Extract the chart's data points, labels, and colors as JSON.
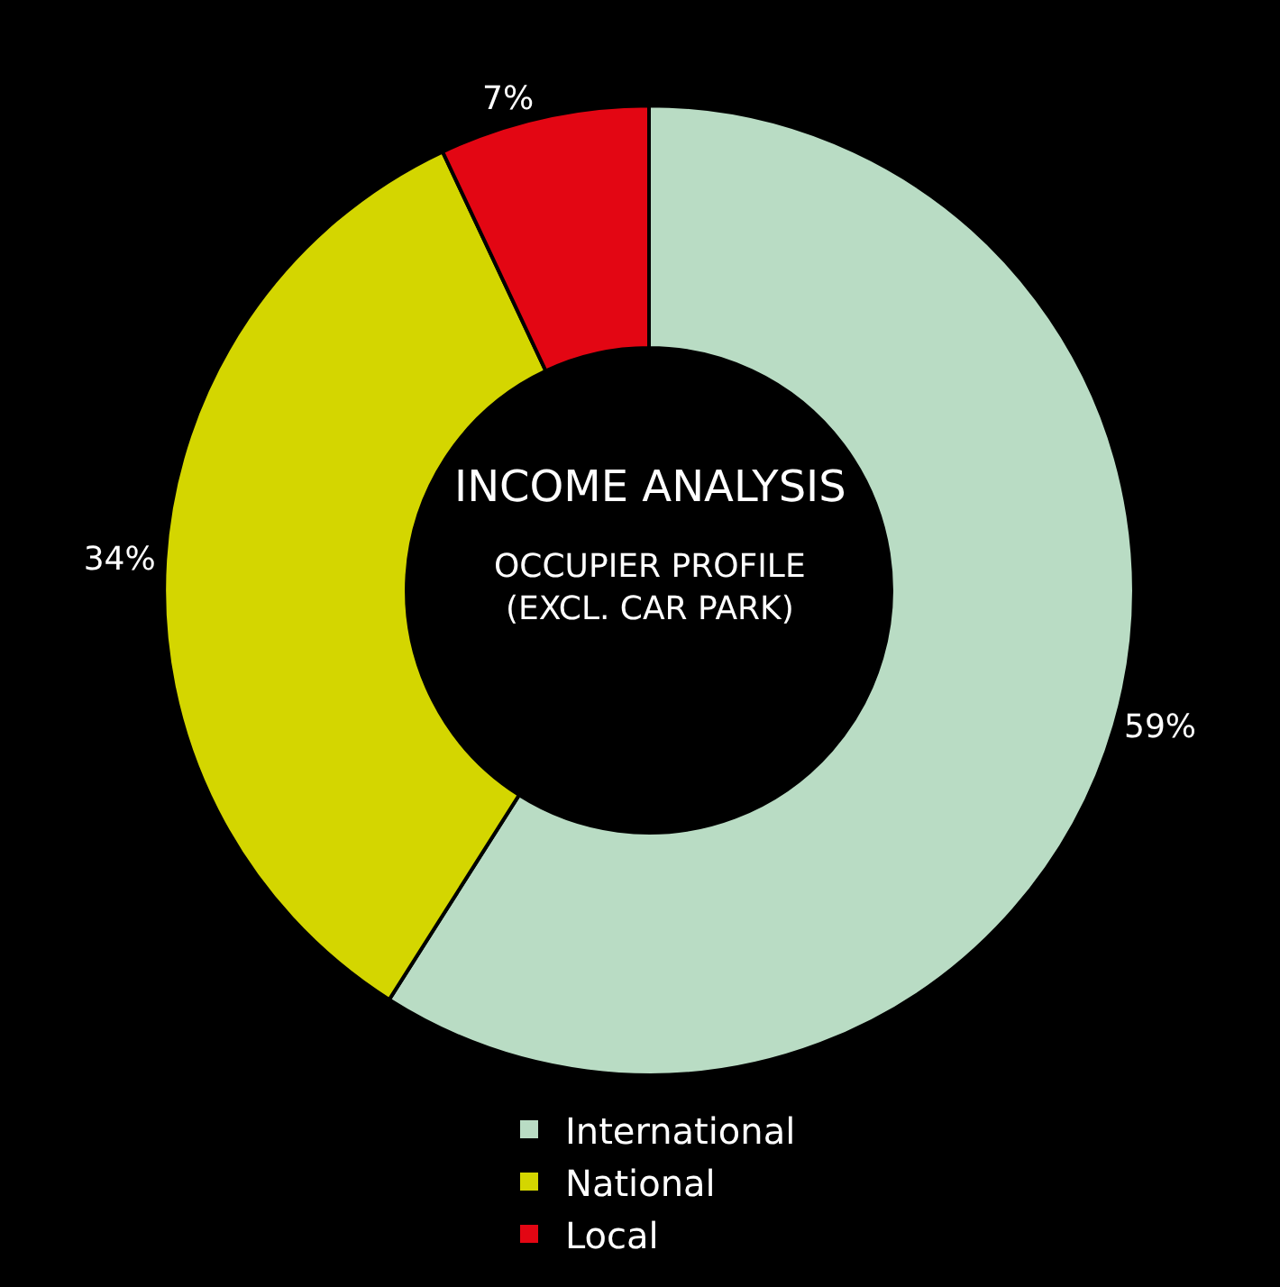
{
  "chart_data": {
    "type": "donut",
    "title": "INCOME ANALYSIS",
    "subtitle": "OCCUPIER PROFILE (EXCL. CAR PARK)",
    "categories": [
      "International",
      "National",
      "Local"
    ],
    "values": [
      59,
      34,
      7
    ],
    "colors": [
      "#b9dcc4",
      "#d4d600",
      "#e30613"
    ],
    "value_labels": [
      "59%",
      "34%",
      "7%"
    ],
    "legend": "bottom"
  }
}
